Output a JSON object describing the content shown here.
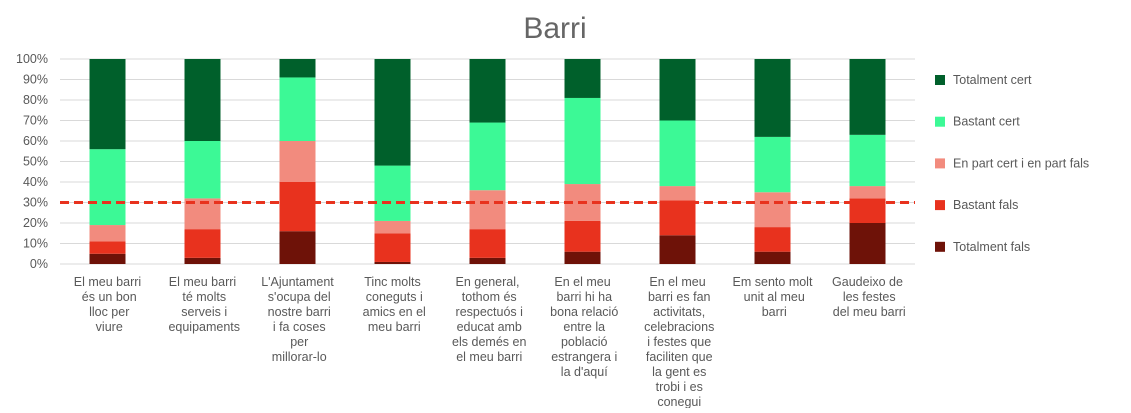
{
  "chart_data": {
    "type": "stacked_bar_100",
    "title": "Barri",
    "categories": [
      "El meu barri és un bon lloc per viure",
      "El meu barri té molts serveis i equipaments",
      "L'Ajuntament s'ocupa del nostre barri i fa coses per millorar-lo",
      "Tinc molts coneguts i amics en el meu barri",
      "En general, tothom és respectuós i educat amb els demés en el meu barri",
      "En el meu barri hi ha bona relació entre la població estrangera i la d'aquí",
      "En el meu barri es fan activitats, celebracions i festes que faciliten que la gent es trobi i es conegui",
      "Em sento molt unit al meu barri",
      "Gaudeixo de les festes del meu barri"
    ],
    "series": [
      {
        "name": "Totalment fals",
        "color": "#6e1208",
        "values": [
          5,
          3,
          16,
          1,
          3,
          6,
          14,
          6,
          20
        ]
      },
      {
        "name": "Bastant fals",
        "color": "#e8321e",
        "values": [
          6,
          14,
          24,
          14,
          14,
          15,
          17,
          12,
          12
        ]
      },
      {
        "name": "En part cert i en part fals",
        "color": "#f28b7e",
        "values": [
          8,
          15,
          20,
          6,
          19,
          18,
          7,
          17,
          6
        ]
      },
      {
        "name": "Bastant cert",
        "color": "#3cf996",
        "values": [
          37,
          28,
          31,
          27,
          33,
          42,
          32,
          27,
          25
        ]
      },
      {
        "name": "Totalment cert",
        "color": "#00602b",
        "values": [
          44,
          40,
          9,
          52,
          31,
          19,
          30,
          38,
          37
        ]
      }
    ],
    "ylim": [
      0,
      100
    ],
    "yticks": [
      {
        "value": 0,
        "label": "0%"
      },
      {
        "value": 10,
        "label": "10%"
      },
      {
        "value": 20,
        "label": "20%"
      },
      {
        "value": 30,
        "label": "30%"
      },
      {
        "value": 40,
        "label": "40%"
      },
      {
        "value": 50,
        "label": "50%"
      },
      {
        "value": 60,
        "label": "60%"
      },
      {
        "value": 70,
        "label": "70%"
      },
      {
        "value": 80,
        "label": "80%"
      },
      {
        "value": 90,
        "label": "90%"
      },
      {
        "value": 100,
        "label": "100%"
      }
    ],
    "grid": true,
    "reference_line": 30,
    "reference_color": "#e8321e",
    "legend": "right"
  }
}
